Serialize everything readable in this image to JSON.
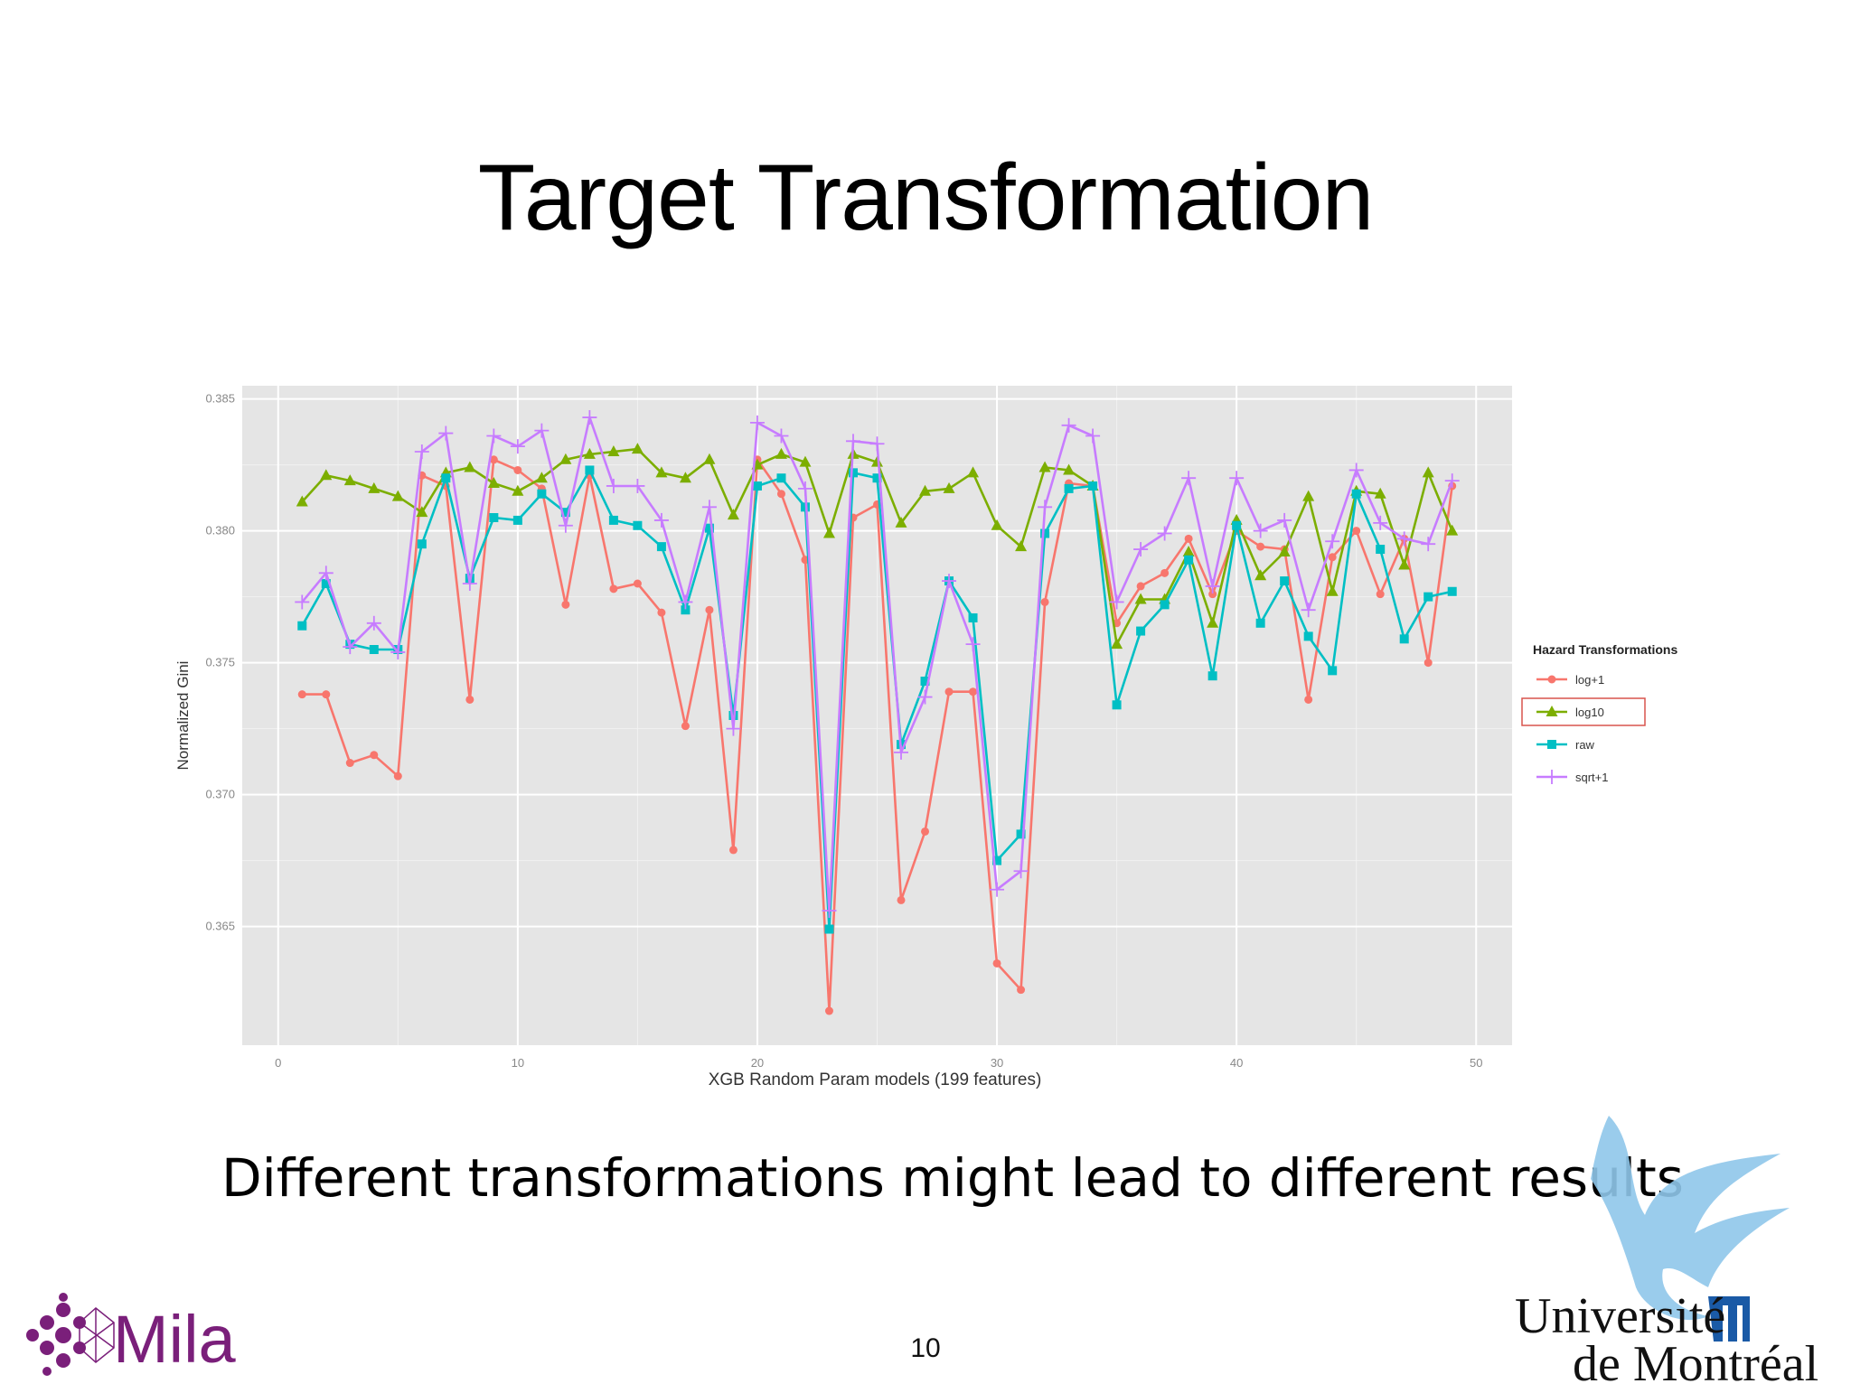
{
  "slide": {
    "title": "Target Transformation",
    "caption": "Different transformations might lead to different results",
    "page_number": "10",
    "logo_left_text": "Mila",
    "logo_right_line1": "Université",
    "logo_right_line2": "de Montréal"
  },
  "colors": {
    "panel_bg": "#e5e5e5",
    "grid": "#ffffff",
    "log_plus_1": "#f8766d",
    "log10": "#7cae00",
    "raw": "#00bfc4",
    "sqrt_plus_1": "#c77cff",
    "mila_purple": "#7a1f7a",
    "udem_blue": "#8fc7ea"
  },
  "chart_data": {
    "type": "line",
    "title": "",
    "xlabel": "XGB Random Param models (199 features)",
    "ylabel": "Normalized Gini",
    "xlim": [
      -1.5,
      51.5
    ],
    "ylim": [
      0.3605,
      0.3855
    ],
    "x_ticks": [
      0,
      10,
      20,
      30,
      40,
      50
    ],
    "x_tick_labels": [
      "0",
      "10",
      "20",
      "30",
      "40",
      "50"
    ],
    "y_ticks": [
      0.365,
      0.37,
      0.375,
      0.38,
      0.385
    ],
    "y_tick_labels": [
      "0.365",
      "0.370",
      "0.375",
      "0.380",
      "0.385"
    ],
    "grid": true,
    "legend": {
      "title": "Hazard Transformations",
      "position": "right",
      "highlighted": "log10"
    },
    "x": [
      1,
      2,
      3,
      4,
      5,
      6,
      7,
      8,
      9,
      10,
      11,
      12,
      13,
      14,
      15,
      16,
      17,
      18,
      19,
      20,
      21,
      22,
      23,
      24,
      25,
      26,
      27,
      28,
      29,
      30,
      31,
      32,
      33,
      34,
      35,
      36,
      37,
      38,
      39,
      40,
      41,
      42,
      43,
      44,
      45,
      46,
      47,
      48,
      49
    ],
    "series": [
      {
        "name": "log+1",
        "color": "#f8766d",
        "marker": "circle",
        "values": [
          0.3738,
          0.3738,
          0.3712,
          0.3715,
          0.3707,
          0.3821,
          0.3817,
          0.3736,
          0.3827,
          0.3823,
          0.3816,
          0.3772,
          0.3821,
          0.3778,
          0.378,
          0.3769,
          0.3726,
          0.377,
          0.3679,
          0.3827,
          0.3814,
          0.3789,
          0.3618,
          0.3805,
          0.381,
          0.366,
          0.3686,
          0.3739,
          0.3739,
          0.3636,
          0.3626,
          0.3773,
          0.3818,
          0.3817,
          0.3765,
          0.3779,
          0.3784,
          0.3797,
          0.3776,
          0.38,
          0.3794,
          0.3793,
          0.3736,
          0.379,
          0.38,
          0.3776,
          0.3797,
          0.375,
          0.3817
        ]
      },
      {
        "name": "log10",
        "color": "#7cae00",
        "marker": "triangle",
        "values": [
          0.3811,
          0.3821,
          0.3819,
          0.3816,
          0.3813,
          0.3807,
          0.3822,
          0.3824,
          0.3818,
          0.3815,
          0.382,
          0.3827,
          0.3829,
          0.383,
          0.3831,
          0.3822,
          0.382,
          0.3827,
          0.3806,
          0.3825,
          0.3829,
          0.3826,
          0.3799,
          0.3829,
          0.3826,
          0.3803,
          0.3815,
          0.3816,
          0.3822,
          0.3802,
          0.3794,
          0.3824,
          0.3823,
          0.3817,
          0.3757,
          0.3774,
          0.3774,
          0.3792,
          0.3765,
          0.3804,
          0.3783,
          0.3792,
          0.3813,
          0.3777,
          0.3815,
          0.3814,
          0.3787,
          0.3822,
          0.38
        ]
      },
      {
        "name": "raw",
        "color": "#00bfc4",
        "marker": "square",
        "values": [
          0.3764,
          0.378,
          0.3757,
          0.3755,
          0.3755,
          0.3795,
          0.382,
          0.3782,
          0.3805,
          0.3804,
          0.3814,
          0.3807,
          0.3823,
          0.3804,
          0.3802,
          0.3794,
          0.377,
          0.3801,
          0.373,
          0.3817,
          0.382,
          0.3809,
          0.3649,
          0.3822,
          0.382,
          0.3719,
          0.3743,
          0.3781,
          0.3767,
          0.3675,
          0.3685,
          0.3799,
          0.3816,
          0.3817,
          0.3734,
          0.3762,
          0.3772,
          0.3789,
          0.3745,
          0.3802,
          0.3765,
          0.3781,
          0.376,
          0.3747,
          0.3814,
          0.3793,
          0.3759,
          0.3775,
          0.3777
        ]
      },
      {
        "name": "sqrt+1",
        "color": "#c77cff",
        "marker": "plus",
        "values": [
          0.3773,
          0.3784,
          0.3756,
          0.3765,
          0.3754,
          0.383,
          0.3837,
          0.378,
          0.3836,
          0.3832,
          0.3838,
          0.3802,
          0.3843,
          0.3817,
          0.3817,
          0.3804,
          0.3773,
          0.3809,
          0.3725,
          0.3841,
          0.3836,
          0.3816,
          0.3656,
          0.3834,
          0.3833,
          0.3716,
          0.3737,
          0.3781,
          0.3757,
          0.3664,
          0.3671,
          0.3809,
          0.384,
          0.3836,
          0.3773,
          0.3793,
          0.3799,
          0.382,
          0.3779,
          0.382,
          0.38,
          0.3804,
          0.377,
          0.3796,
          0.3823,
          0.3803,
          0.3797,
          0.3795,
          0.3819
        ]
      }
    ]
  }
}
